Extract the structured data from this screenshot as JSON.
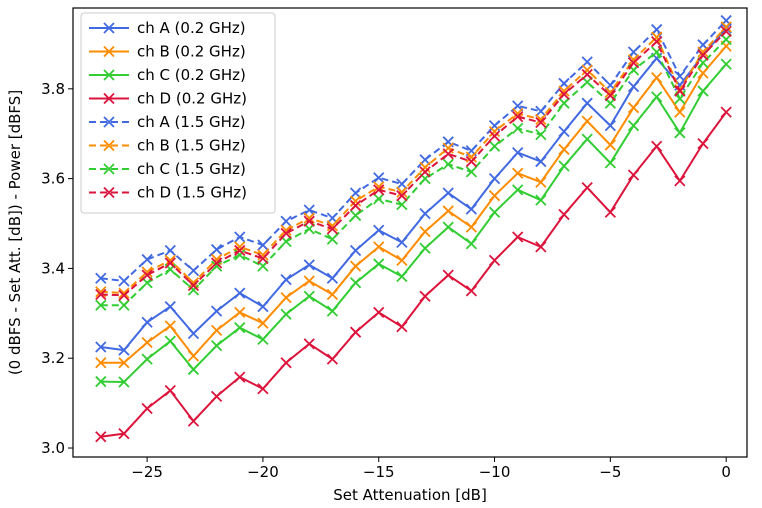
{
  "chart_data": {
    "type": "line",
    "title": "",
    "xlabel": "Set Attenuation [dB]",
    "ylabel": "(0 dBFS - Set Att. [dB]) - Power [dBFS]",
    "xlim": [
      -28.2,
      0.9
    ],
    "ylim": [
      2.98,
      3.98
    ],
    "xticks": [
      -25,
      -20,
      -15,
      -10,
      -5,
      0
    ],
    "xtick_labels": [
      "−25",
      "−20",
      "−15",
      "−10",
      "−5",
      "0"
    ],
    "yticks": [
      3.0,
      3.2,
      3.4,
      3.6,
      3.8
    ],
    "ytick_labels": [
      "3.0",
      "3.2",
      "3.4",
      "3.6",
      "3.8"
    ],
    "grid": false,
    "legend_position": "top-left",
    "x": [
      -27,
      -26,
      -25,
      -24,
      -23,
      -22,
      -21,
      -20,
      -19,
      -18,
      -17,
      -16,
      -15,
      -14,
      -13,
      -12,
      -11,
      -10,
      -9,
      -8,
      -7,
      -6,
      -5,
      -4,
      -3,
      -2,
      -1,
      0
    ],
    "series": [
      {
        "name": "ch A (0.2 GHz)",
        "color": "#4169e1",
        "style": "solid",
        "values": [
          3.225,
          3.218,
          3.28,
          3.315,
          3.255,
          3.305,
          3.345,
          3.315,
          3.375,
          3.408,
          3.378,
          3.44,
          3.485,
          3.458,
          3.522,
          3.568,
          3.532,
          3.6,
          3.658,
          3.638,
          3.705,
          3.768,
          3.718,
          3.805,
          3.868,
          3.808,
          3.875,
          3.935
        ]
      },
      {
        "name": "ch B (0.2 GHz)",
        "color": "#ff8c00",
        "style": "solid",
        "values": [
          3.19,
          3.19,
          3.235,
          3.272,
          3.205,
          3.262,
          3.302,
          3.278,
          3.335,
          3.372,
          3.342,
          3.405,
          3.448,
          3.418,
          3.482,
          3.528,
          3.492,
          3.562,
          3.612,
          3.592,
          3.665,
          3.728,
          3.675,
          3.758,
          3.825,
          3.748,
          3.835,
          3.895
        ]
      },
      {
        "name": "ch C (0.2 GHz)",
        "color": "#32cd32",
        "style": "solid",
        "values": [
          3.148,
          3.147,
          3.198,
          3.238,
          3.175,
          3.228,
          3.268,
          3.242,
          3.298,
          3.338,
          3.305,
          3.368,
          3.41,
          3.382,
          3.445,
          3.492,
          3.455,
          3.525,
          3.575,
          3.552,
          3.628,
          3.688,
          3.635,
          3.718,
          3.782,
          3.702,
          3.795,
          3.855
        ]
      },
      {
        "name": "ch D (0.2 GHz)",
        "color": "#dc143c",
        "style": "solid",
        "values": [
          3.025,
          3.032,
          3.088,
          3.128,
          3.06,
          3.115,
          3.158,
          3.132,
          3.19,
          3.232,
          3.198,
          3.258,
          3.302,
          3.27,
          3.338,
          3.385,
          3.35,
          3.418,
          3.47,
          3.448,
          3.52,
          3.58,
          3.525,
          3.608,
          3.672,
          3.595,
          3.678,
          3.748
        ]
      },
      {
        "name": "ch A (1.5 GHz)",
        "color": "#4169e1",
        "style": "dashed",
        "values": [
          3.378,
          3.372,
          3.42,
          3.44,
          3.395,
          3.442,
          3.47,
          3.452,
          3.505,
          3.53,
          3.512,
          3.568,
          3.602,
          3.588,
          3.642,
          3.682,
          3.662,
          3.718,
          3.762,
          3.75,
          3.812,
          3.86,
          3.808,
          3.882,
          3.932,
          3.828,
          3.898,
          3.952
        ]
      },
      {
        "name": "ch B (1.5 GHz)",
        "color": "#ff8c00",
        "style": "dashed",
        "values": [
          3.348,
          3.345,
          3.392,
          3.418,
          3.368,
          3.42,
          3.448,
          3.43,
          3.485,
          3.512,
          3.495,
          3.55,
          3.582,
          3.57,
          3.625,
          3.668,
          3.648,
          3.705,
          3.745,
          3.732,
          3.795,
          3.842,
          3.792,
          3.865,
          3.915,
          3.798,
          3.882,
          3.938
        ]
      },
      {
        "name": "ch C (1.5 GHz)",
        "color": "#32cd32",
        "style": "dashed",
        "values": [
          3.318,
          3.318,
          3.368,
          3.398,
          3.352,
          3.405,
          3.43,
          3.405,
          3.46,
          3.488,
          3.465,
          3.518,
          3.555,
          3.542,
          3.6,
          3.632,
          3.615,
          3.672,
          3.712,
          3.698,
          3.768,
          3.815,
          3.768,
          3.842,
          3.882,
          3.778,
          3.858,
          3.91
        ]
      },
      {
        "name": "ch D (1.5 GHz)",
        "color": "#dc143c",
        "style": "dashed",
        "values": [
          3.342,
          3.34,
          3.385,
          3.412,
          3.362,
          3.412,
          3.44,
          3.422,
          3.478,
          3.505,
          3.488,
          3.54,
          3.575,
          3.562,
          3.615,
          3.655,
          3.638,
          3.695,
          3.738,
          3.725,
          3.788,
          3.832,
          3.785,
          3.858,
          3.905,
          3.795,
          3.875,
          3.928
        ]
      }
    ]
  }
}
